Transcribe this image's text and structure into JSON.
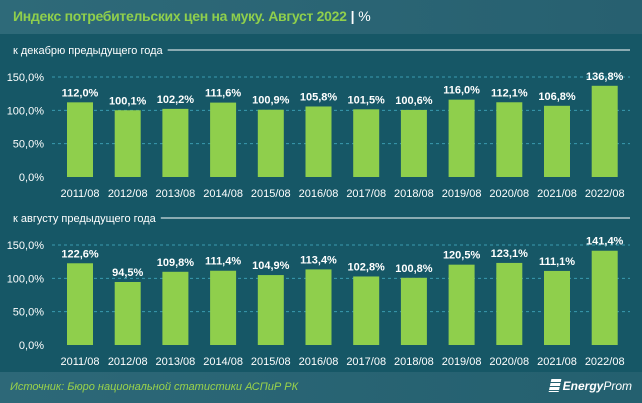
{
  "header": {
    "title": "Индекс потребительских цен на муку. Август 2022",
    "unit": "%"
  },
  "chart_data": [
    {
      "type": "bar",
      "title": "к декабрю предыдущего года",
      "categories": [
        "2011/08",
        "2012/08",
        "2013/08",
        "2014/08",
        "2015/08",
        "2016/08",
        "2017/08",
        "2018/08",
        "2019/08",
        "2020/08",
        "2021/08",
        "2022/08"
      ],
      "values": [
        112.0,
        100.1,
        102.2,
        111.6,
        100.9,
        105.8,
        101.5,
        100.6,
        116.0,
        112.1,
        106.8,
        136.8
      ],
      "labels": [
        "112,0%",
        "100,1%",
        "102,2%",
        "111,6%",
        "100,9%",
        "105,8%",
        "101,5%",
        "100,6%",
        "116,0%",
        "112,1%",
        "106,8%",
        "136,8%"
      ],
      "yticks": [
        "0,0%",
        "50,0%",
        "100,0%",
        "150,0%"
      ],
      "ylim": [
        0,
        150
      ],
      "grid": true,
      "color": "#8fcf4c"
    },
    {
      "type": "bar",
      "title": "к августу предыдущего года",
      "categories": [
        "2011/08",
        "2012/08",
        "2013/08",
        "2014/08",
        "2015/08",
        "2016/08",
        "2017/08",
        "2018/08",
        "2019/08",
        "2020/08",
        "2021/08",
        "2022/08"
      ],
      "values": [
        122.6,
        94.5,
        109.8,
        111.4,
        104.9,
        113.4,
        102.8,
        100.8,
        120.5,
        123.1,
        111.1,
        141.4
      ],
      "labels": [
        "122,6%",
        "94,5%",
        "109,8%",
        "111,4%",
        "104,9%",
        "113,4%",
        "102,8%",
        "100,8%",
        "120,5%",
        "123,1%",
        "111,1%",
        "141,4%"
      ],
      "yticks": [
        "0,0%",
        "50,0%",
        "100,0%",
        "150,0%"
      ],
      "ylim": [
        0,
        150
      ],
      "grid": true,
      "color": "#8fcf4c"
    }
  ],
  "footer": {
    "source": "Источник: Бюро национальной статистики АСПиР РК",
    "logo_a": "Energy",
    "logo_b": "Prom"
  }
}
